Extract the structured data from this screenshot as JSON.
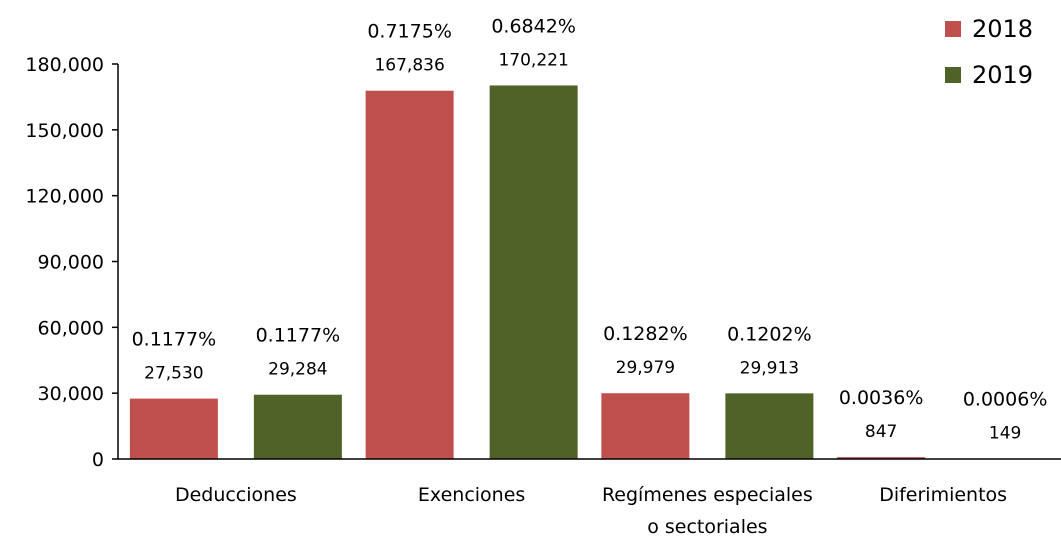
{
  "chart_data": {
    "type": "bar",
    "title": "",
    "xlabel": "",
    "ylabel": "",
    "categories": [
      "Deducciones",
      "Exenciones",
      "Regímenes especiales o sectoriales",
      "Diferimientos"
    ],
    "category_label_lines": [
      [
        "Deducciones"
      ],
      [
        "Exenciones"
      ],
      [
        "Regímenes especiales",
        "o sectoriales"
      ],
      [
        "Diferimientos"
      ]
    ],
    "series": [
      {
        "name": "2018",
        "color": "#C0504D",
        "values": [
          27530,
          167836,
          29979,
          847
        ],
        "value_labels": [
          "27,530",
          "167,836",
          "29,979",
          "847"
        ],
        "percent_labels": [
          "0.1177%",
          "0.7175%",
          "0.1282%",
          "0.0036%"
        ]
      },
      {
        "name": "2019",
        "color": "#4F6228",
        "values": [
          29284,
          170221,
          29913,
          149
        ],
        "value_labels": [
          "29,284",
          "170,221",
          "29,913",
          "149"
        ],
        "percent_labels": [
          "0.1177%",
          "0.6842%",
          "0.1202%",
          "0.0006%"
        ]
      }
    ],
    "yticks": [
      0,
      30000,
      60000,
      90000,
      120000,
      150000,
      180000
    ],
    "ytick_labels": [
      "0",
      "30,000",
      "60,000",
      "90,000",
      "120,000",
      "150,000",
      "180,000"
    ],
    "ylim": [
      0,
      180000
    ],
    "grid": false,
    "legend_position": "top-right"
  }
}
